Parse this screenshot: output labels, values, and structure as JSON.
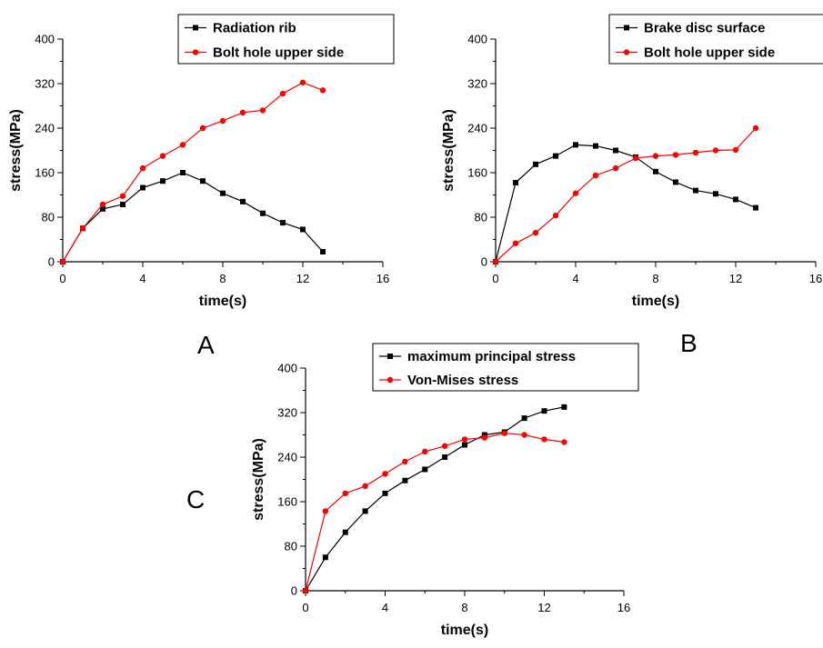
{
  "colors": {
    "black_series": "#000000",
    "red_series": "#ff0000",
    "axis": "#000000",
    "background": "#ffffff"
  },
  "panel_labels": {
    "A": "A",
    "B": "B",
    "C": "C"
  },
  "chart_data": [
    {
      "id": "A",
      "type": "line",
      "xlabel": "time(s)",
      "ylabel": "stress(MPa)",
      "xlim": [
        0,
        16
      ],
      "ylim": [
        0,
        400
      ],
      "xticks": [
        0,
        4,
        8,
        12,
        16
      ],
      "yticks": [
        0,
        80,
        160,
        240,
        320,
        400
      ],
      "grid": false,
      "legend_position": "top-right",
      "series": [
        {
          "name": "Radiation rib",
          "color": "#000000",
          "marker": "square",
          "x": [
            0,
            1,
            2,
            3,
            4,
            5,
            6,
            7,
            8,
            9,
            10,
            11,
            12,
            13
          ],
          "y": [
            0,
            60,
            95,
            103,
            133,
            145,
            160,
            145,
            123,
            108,
            87,
            70,
            58,
            18
          ]
        },
        {
          "name": "Bolt hole upper side",
          "color": "#ff0000",
          "marker": "circle",
          "x": [
            0,
            1,
            2,
            3,
            4,
            5,
            6,
            7,
            8,
            9,
            10,
            11,
            12,
            13
          ],
          "y": [
            0,
            60,
            103,
            118,
            168,
            190,
            210,
            240,
            253,
            268,
            272,
            302,
            322,
            308
          ]
        }
      ]
    },
    {
      "id": "B",
      "type": "line",
      "xlabel": "time(s)",
      "ylabel": "stress(MPa)",
      "xlim": [
        0,
        16
      ],
      "ylim": [
        0,
        400
      ],
      "xticks": [
        0,
        4,
        8,
        12,
        16
      ],
      "yticks": [
        0,
        80,
        160,
        240,
        320,
        400
      ],
      "grid": false,
      "legend_position": "top-right",
      "series": [
        {
          "name": "Brake disc surface",
          "color": "#000000",
          "marker": "square",
          "x": [
            0,
            1,
            2,
            3,
            4,
            5,
            6,
            7,
            8,
            9,
            10,
            11,
            12,
            13
          ],
          "y": [
            0,
            142,
            175,
            190,
            210,
            208,
            200,
            188,
            162,
            143,
            128,
            122,
            112,
            97
          ]
        },
        {
          "name": "Bolt hole upper side",
          "color": "#ff0000",
          "marker": "circle",
          "x": [
            0,
            1,
            2,
            3,
            4,
            5,
            6,
            7,
            8,
            9,
            10,
            11,
            12,
            13
          ],
          "y": [
            0,
            33,
            52,
            83,
            123,
            155,
            168,
            186,
            190,
            192,
            196,
            200,
            201,
            240
          ]
        }
      ]
    },
    {
      "id": "C",
      "type": "line",
      "xlabel": "time(s)",
      "ylabel": "stress(MPa)",
      "xlim": [
        0,
        16
      ],
      "ylim": [
        0,
        400
      ],
      "xticks": [
        0,
        4,
        8,
        12,
        16
      ],
      "yticks": [
        0,
        80,
        160,
        240,
        320,
        400
      ],
      "grid": false,
      "legend_position": "top-right",
      "series": [
        {
          "name": "maximum principal stress",
          "color": "#000000",
          "marker": "square",
          "x": [
            0,
            1,
            2,
            3,
            4,
            5,
            6,
            7,
            8,
            9,
            10,
            11,
            12,
            13
          ],
          "y": [
            0,
            60,
            105,
            143,
            175,
            198,
            218,
            240,
            262,
            280,
            285,
            310,
            323,
            330
          ]
        },
        {
          "name": "Von-Mises stress",
          "color": "#ff0000",
          "marker": "circle",
          "x": [
            0,
            1,
            2,
            3,
            4,
            5,
            6,
            7,
            8,
            9,
            10,
            11,
            12,
            13
          ],
          "y": [
            0,
            143,
            175,
            188,
            210,
            232,
            250,
            260,
            272,
            275,
            283,
            280,
            272,
            267
          ]
        }
      ]
    }
  ]
}
